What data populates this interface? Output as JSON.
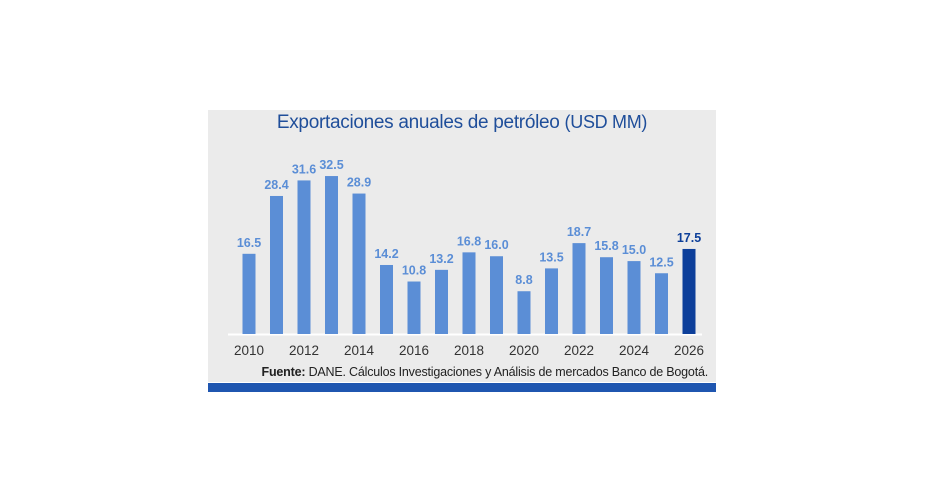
{
  "chart_data": {
    "type": "bar",
    "title": "Exportaciones anuales de petróleo",
    "title_units": "(USD MM)",
    "categories": [
      "2010",
      "2011",
      "2012",
      "2013",
      "2014",
      "2015",
      "2016",
      "2017",
      "2018",
      "2019",
      "2020",
      "2021",
      "2022",
      "2023",
      "2024",
      "2025",
      "2026"
    ],
    "x_tick_labels": [
      "2010",
      "2012",
      "2014",
      "2016",
      "2018",
      "2020",
      "2022",
      "2024",
      "2026"
    ],
    "values": [
      16.5,
      28.4,
      31.6,
      32.5,
      28.9,
      14.2,
      10.8,
      13.2,
      16.8,
      16.0,
      8.8,
      13.5,
      18.7,
      15.8,
      15.0,
      12.5,
      17.5
    ],
    "labels": [
      "16.5",
      "28.4",
      "31.6",
      "32.5",
      "28.9",
      "14.2",
      "10.8",
      "13.2",
      "16.8",
      "16.0",
      "8.8",
      "13.5",
      "18.7",
      "15.8",
      "15.0",
      "12.5",
      "17.5"
    ],
    "highlight_index": 16,
    "ylim": [
      0,
      40
    ],
    "grid": false,
    "colors": {
      "bar": "#5b8ed6",
      "highlight": "#0d3f9a",
      "label": "#5b8ed6",
      "highlight_label": "#0d3f9a",
      "axis": "#ffffff",
      "tick_label": "#333333"
    }
  },
  "source": {
    "prefix": "Fuente:",
    "text": " DANE. Cálculos Investigaciones y Análisis de mercados Banco de Bogotá."
  }
}
